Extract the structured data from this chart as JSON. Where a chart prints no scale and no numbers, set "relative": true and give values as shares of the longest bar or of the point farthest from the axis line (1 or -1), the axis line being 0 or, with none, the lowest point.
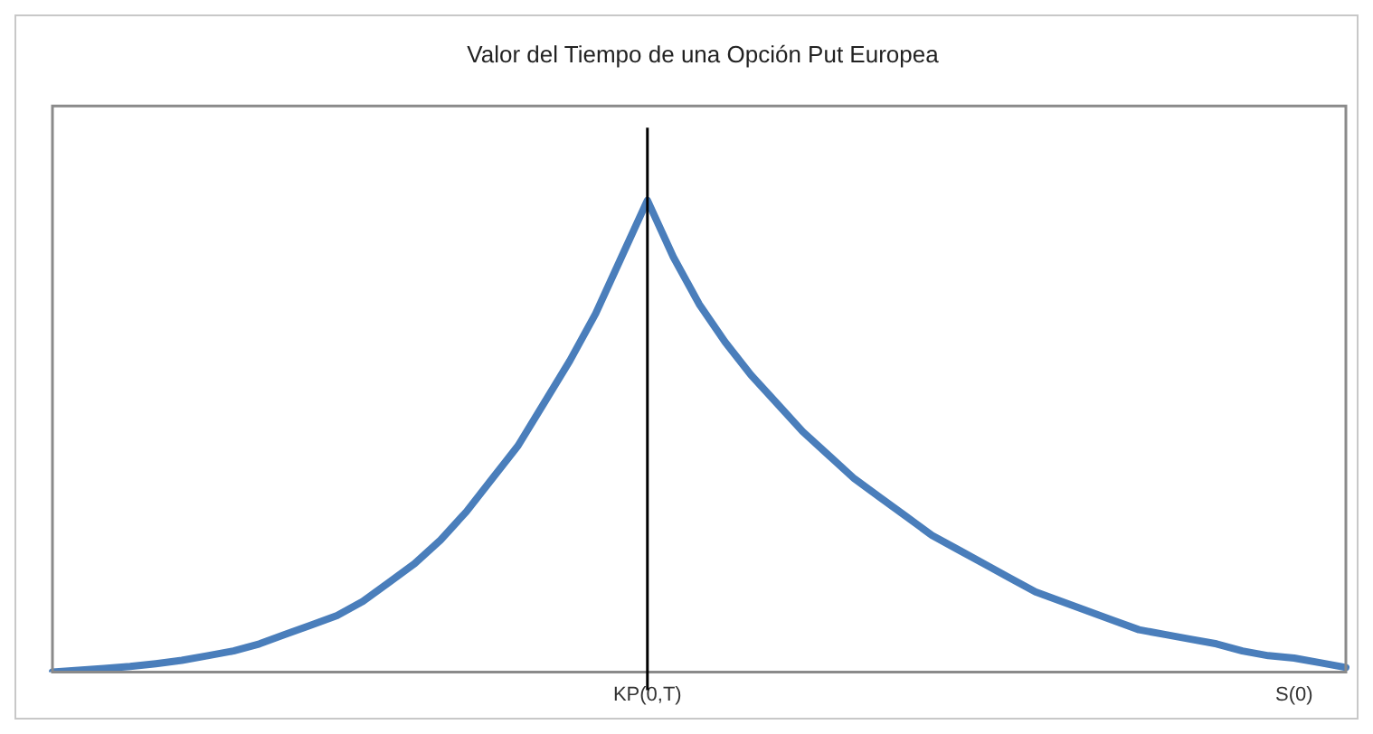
{
  "chart_data": {
    "type": "line",
    "title": "Valor del Tiempo de una Opción Put Europea",
    "relative": true,
    "categories": [
      null,
      null,
      null,
      null,
      null,
      null,
      null,
      null,
      null,
      null,
      null,
      null,
      null,
      null,
      null,
      null,
      null,
      null,
      null,
      null,
      null,
      null,
      null,
      "KP(0,T)",
      null,
      null,
      null,
      null,
      null,
      null,
      null,
      null,
      null,
      null,
      null,
      null,
      null,
      null,
      null,
      null,
      null,
      null,
      null,
      null,
      null,
      null,
      null,
      null,
      "S(0)",
      null,
      null
    ],
    "series": [
      {
        "color": "#4a7ebb",
        "values": [
          0,
          0.004,
          0.008,
          0.012,
          0.018,
          0.025,
          0.035,
          0.045,
          0.06,
          0.08,
          0.1,
          0.12,
          0.15,
          0.19,
          0.23,
          0.28,
          0.34,
          0.41,
          0.48,
          0.57,
          0.66,
          0.76,
          0.88,
          1,
          0.88,
          0.78,
          0.7,
          0.63,
          0.57,
          0.51,
          0.46,
          0.41,
          0.37,
          0.33,
          0.29,
          0.26,
          0.23,
          0.2,
          0.17,
          0.15,
          0.13,
          0.11,
          0.09,
          0.08,
          0.07,
          0.06,
          0.045,
          0.035,
          0.03,
          0.02,
          0.01
        ]
      }
    ],
    "ref_lines": [
      {
        "axis": "x",
        "value": "KP(0,T)",
        "color": "#000000"
      }
    ],
    "marker": "none",
    "line_style": "solid",
    "grid": false,
    "legend": false
  }
}
